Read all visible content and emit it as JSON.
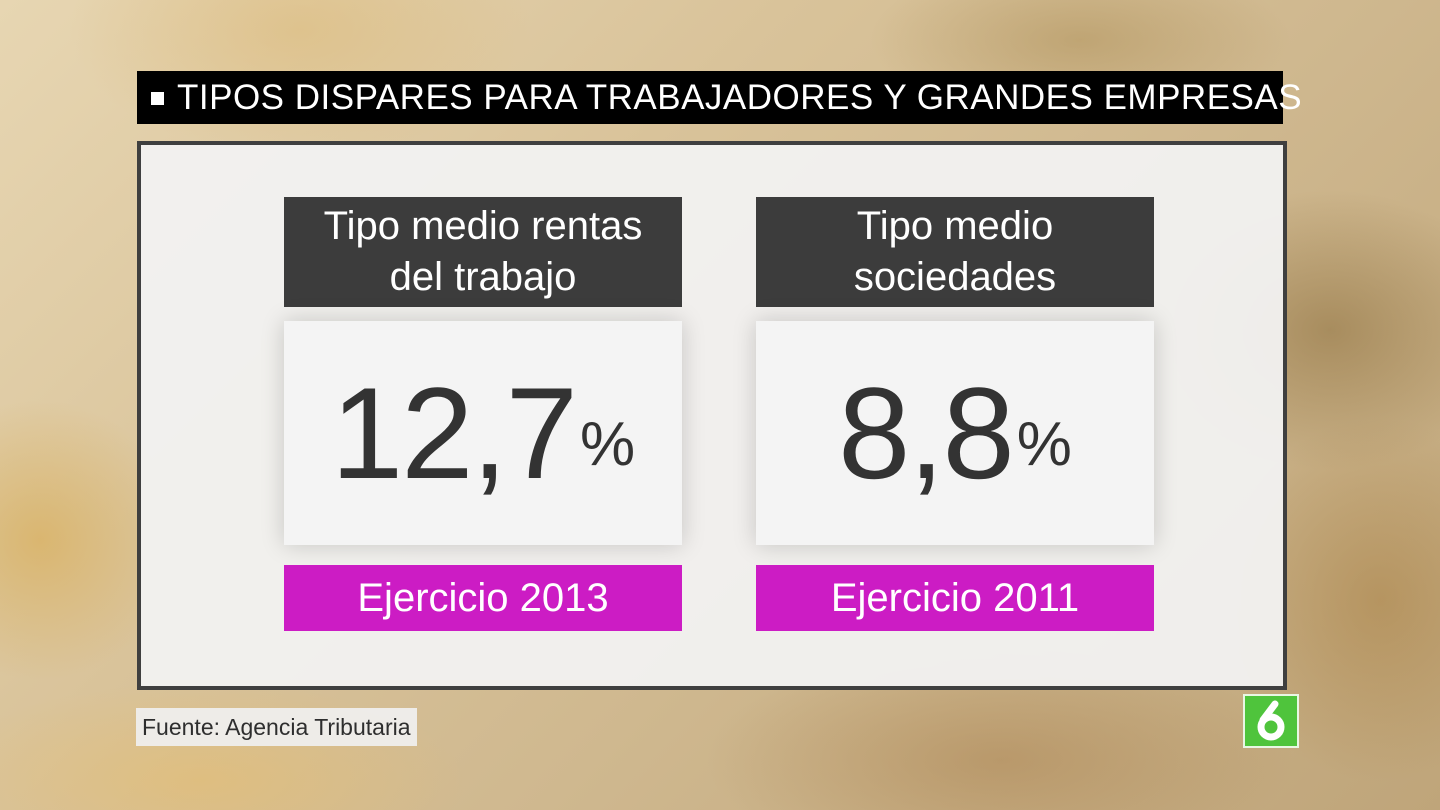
{
  "header": {
    "title": "TIPOS DISPARES PARA TRABAJADORES Y GRANDES EMPRESAS"
  },
  "cards": [
    {
      "label_line1": "Tipo medio rentas",
      "label_line2": "del trabajo",
      "value": "12,7",
      "unit": "%",
      "period": "Ejercicio 2013"
    },
    {
      "label_line1": "Tipo medio",
      "label_line2": "sociedades",
      "value": "8,8",
      "unit": "%",
      "period": "Ejercicio 2011"
    }
  ],
  "source": "Fuente: Agencia Tributaria",
  "logo": {
    "icon": "lasexta-logo-icon",
    "color": "#4fc43c"
  },
  "colors": {
    "header_bg": "#000000",
    "card_header_bg": "#3c3c3c",
    "period_bg": "#cc1cc4",
    "value_text": "#333333"
  }
}
